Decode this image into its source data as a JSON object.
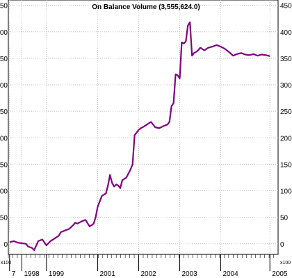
{
  "chart_data": {
    "type": "line",
    "title": "On Balance Volume (3,555,624.0)",
    "multiplier_label": "x100",
    "ylim": [
      -20,
      460
    ],
    "y_ticks": [
      0,
      50,
      100,
      150,
      200,
      250,
      300,
      350,
      400,
      450
    ],
    "x_ticks": [
      {
        "label": "7",
        "x": 1997.85,
        "minor": false
      },
      {
        "label": "1998",
        "x": 1998.15,
        "minor": false
      },
      {
        "label": "1999",
        "x": 1998.75,
        "minor": false
      },
      {
        "label": "2001",
        "x": 2000.0,
        "minor": false
      },
      {
        "label": "2002",
        "x": 2001.0,
        "minor": false
      },
      {
        "label": "2003",
        "x": 2002.0,
        "minor": false
      },
      {
        "label": "2004",
        "x": 2003.0,
        "minor": false
      },
      {
        "label": "2005",
        "x": 2004.2,
        "minor": false
      }
    ],
    "xlim": [
      1997.82,
      2004.4
    ],
    "grid": true,
    "line_color": "#800080",
    "series": [
      {
        "name": "",
        "x": [
          1997.85,
          1997.95,
          1998.05,
          1998.15,
          1998.25,
          1998.3,
          1998.4,
          1998.45,
          1998.55,
          1998.65,
          1998.75,
          1998.85,
          1998.95,
          1999.05,
          1999.1,
          1999.2,
          1999.3,
          1999.4,
          1999.45,
          1999.5,
          1999.6,
          1999.7,
          1999.8,
          1999.85,
          1999.9,
          1999.95,
          2000.0,
          2000.05,
          2000.1,
          2000.2,
          2000.25,
          2000.3,
          2000.35,
          2000.4,
          2000.45,
          2000.5,
          2000.55,
          2000.6,
          2000.7,
          2000.8,
          2000.85,
          2000.9,
          2000.95,
          2001.0,
          2001.05,
          2001.1,
          2001.2,
          2001.3,
          2001.4,
          2001.5,
          2001.6,
          2001.7,
          2001.75,
          2001.8,
          2001.85,
          2001.9,
          2001.95,
          2002.0,
          2002.05,
          2002.1,
          2002.15,
          2002.2,
          2002.25,
          2002.3,
          2002.35,
          2002.4,
          2002.45,
          2002.5,
          2002.6,
          2002.7,
          2002.8,
          2002.9,
          2003.0,
          2003.1,
          2003.2,
          2003.3,
          2003.4,
          2003.5,
          2003.6,
          2003.7,
          2003.8,
          2003.9,
          2004.0,
          2004.1,
          2004.2
        ],
        "y": [
          3,
          5,
          2,
          1,
          0,
          -5,
          -8,
          -12,
          5,
          8,
          -3,
          5,
          10,
          15,
          22,
          25,
          28,
          35,
          40,
          38,
          42,
          45,
          33,
          35,
          38,
          50,
          70,
          80,
          90,
          95,
          110,
          130,
          115,
          108,
          112,
          110,
          105,
          120,
          125,
          140,
          150,
          205,
          210,
          215,
          218,
          220,
          225,
          230,
          220,
          218,
          222,
          225,
          230,
          260,
          265,
          320,
          318,
          312,
          380,
          378,
          382,
          412,
          418,
          355,
          360,
          362,
          365,
          370,
          365,
          370,
          372,
          375,
          372,
          368,
          362,
          355,
          358,
          360,
          357,
          356,
          358,
          355,
          357,
          356,
          354
        ]
      }
    ]
  }
}
